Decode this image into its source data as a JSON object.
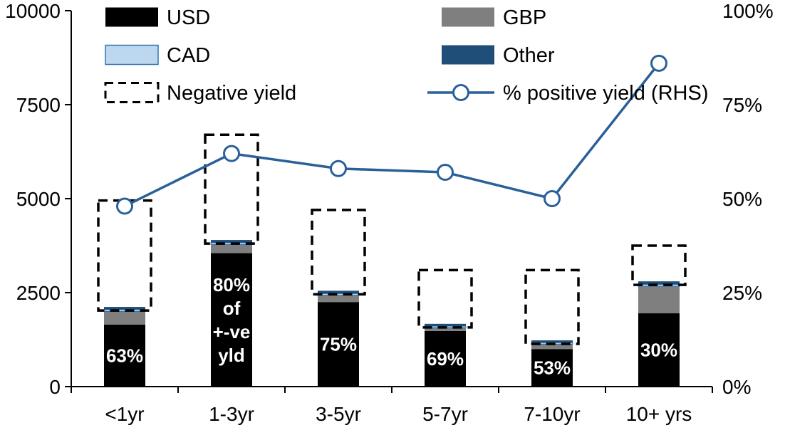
{
  "chart_data": {
    "type": "bar",
    "subtype": "stacked-bar-with-line-overlay",
    "categories": [
      "<1yr",
      "1-3yr",
      "3-5yr",
      "5-7yr",
      "7-10yr",
      "10+ yrs"
    ],
    "series": [
      {
        "name": "USD",
        "color": "#000000",
        "values": [
          1650,
          3550,
          2250,
          1480,
          1000,
          1950
        ]
      },
      {
        "name": "GBP",
        "color": "#7f7f7f",
        "values": [
          350,
          230,
          180,
          90,
          130,
          720
        ]
      },
      {
        "name": "CAD",
        "color": "#bdd7ee",
        "border": "#2e75b6",
        "values": [
          50,
          50,
          45,
          40,
          40,
          50
        ]
      },
      {
        "name": "Other",
        "color": "#1f4e79",
        "values": [
          70,
          70,
          75,
          60,
          60,
          80
        ]
      }
    ],
    "negative_yield": {
      "name": "Negative yield",
      "totals": [
        4950,
        6700,
        4700,
        3100,
        3100,
        3750
      ]
    },
    "line": {
      "name": "% positive yield (RHS)",
      "color": "#2a6099",
      "values": [
        48,
        62,
        58,
        57,
        50,
        86
      ]
    },
    "bar_labels": [
      "63%",
      "80%\nof\n+-ve\nyld",
      "75%",
      "69%",
      "53%",
      "30%"
    ],
    "left_axis": {
      "min": 0,
      "max": 10000,
      "ticks": [
        0,
        2500,
        5000,
        7500,
        10000
      ],
      "tick_labels": [
        "0",
        "2500",
        "5000",
        "7500",
        "10000"
      ]
    },
    "right_axis": {
      "min": 0,
      "max": 100,
      "ticks": [
        0,
        25,
        50,
        75,
        100
      ],
      "tick_labels": [
        "0%",
        "25%",
        "50%",
        "75%",
        "100%"
      ]
    },
    "legend": [
      {
        "label": "USD",
        "swatch": "fill",
        "color": "#000000",
        "row": 0,
        "col": 0
      },
      {
        "label": "GBP",
        "swatch": "fill",
        "color": "#7f7f7f",
        "row": 0,
        "col": 1
      },
      {
        "label": "CAD",
        "swatch": "fill",
        "color": "#bdd7ee",
        "border": "#2e75b6",
        "row": 1,
        "col": 0
      },
      {
        "label": "Other",
        "swatch": "fill",
        "color": "#1f4e79",
        "row": 1,
        "col": 1
      },
      {
        "label": "Negative yield",
        "swatch": "dashed",
        "row": 2,
        "col": 0
      },
      {
        "label": "% positive yield (RHS)",
        "swatch": "line-marker",
        "color": "#2a6099",
        "row": 2,
        "col": 1
      }
    ],
    "grid": false,
    "legend_position": "top-inside",
    "axis_color": "#000000",
    "background_color": "#ffffff"
  }
}
